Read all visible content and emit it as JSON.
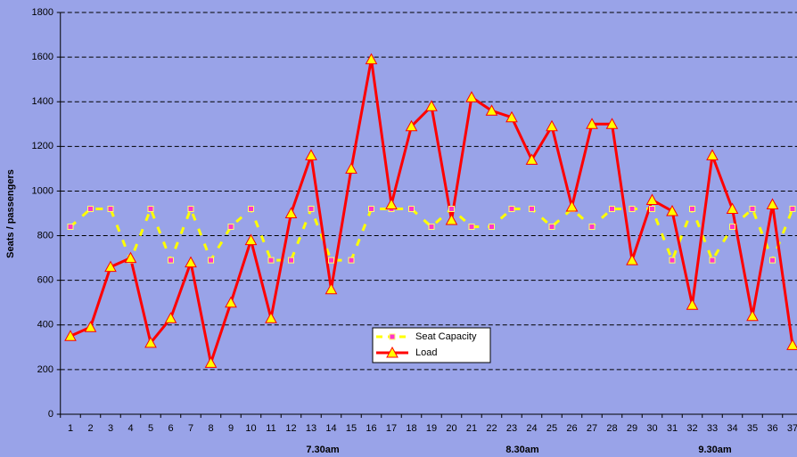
{
  "chart_data": {
    "type": "line",
    "y_label": "Seats / passengers",
    "categories": [
      1,
      2,
      3,
      4,
      5,
      6,
      7,
      8,
      9,
      10,
      11,
      12,
      13,
      14,
      15,
      16,
      17,
      18,
      19,
      20,
      21,
      22,
      23,
      24,
      25,
      26,
      27,
      28,
      29,
      30,
      31,
      32,
      33,
      34,
      35,
      36,
      37
    ],
    "series": [
      {
        "name": "Seat Capacity",
        "color": "#ffff00",
        "marker_color": "#ff33cc",
        "dashed": true,
        "values": [
          840,
          920,
          920,
          690,
          920,
          690,
          920,
          690,
          840,
          920,
          690,
          690,
          920,
          690,
          690,
          920,
          920,
          920,
          840,
          920,
          840,
          840,
          920,
          920,
          840,
          920,
          840,
          920,
          920,
          920,
          690,
          920,
          690,
          840,
          920,
          690,
          920
        ]
      },
      {
        "name": "Load",
        "color": "#ff0000",
        "marker_color": "#ffff00",
        "dashed": false,
        "values": [
          350,
          390,
          660,
          700,
          320,
          430,
          680,
          230,
          500,
          780,
          430,
          900,
          1160,
          560,
          1100,
          1590,
          940,
          1290,
          1380,
          870,
          1420,
          1360,
          1330,
          1140,
          1290,
          930,
          1300,
          1300,
          690,
          960,
          910,
          490,
          1160,
          920,
          440,
          940,
          310
        ]
      }
    ],
    "ylim": [
      0,
      1800
    ],
    "yticks": [
      0,
      200,
      400,
      600,
      800,
      1000,
      1200,
      1400,
      1600,
      1800
    ],
    "grid": true,
    "legend_position": "center",
    "annotations": [
      "7.30am",
      "8.30am",
      "9.30am"
    ]
  }
}
